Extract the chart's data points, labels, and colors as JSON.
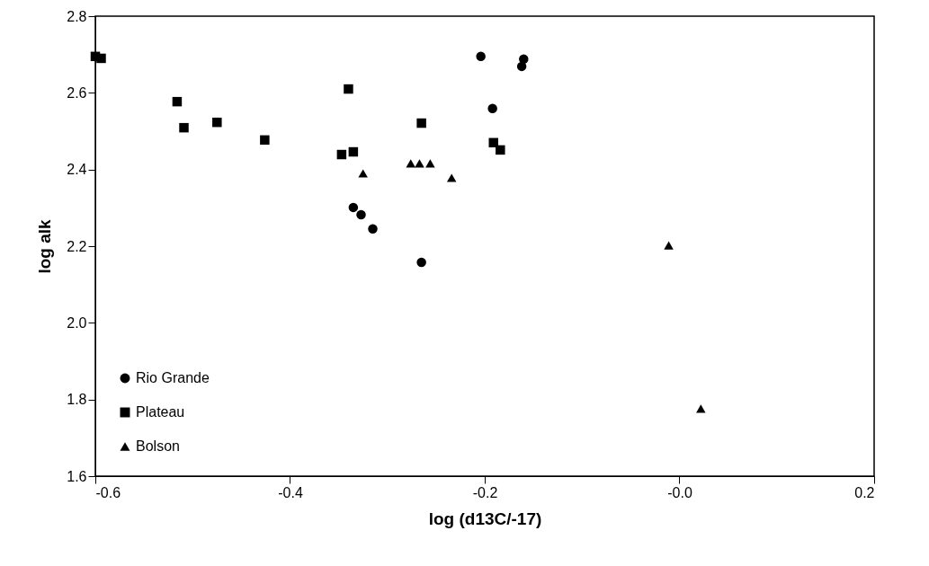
{
  "chart_data": {
    "type": "scatter",
    "xlabel": "log     (d13C/-17)",
    "ylabel": "log alk",
    "xlim": [
      -0.6,
      0.2
    ],
    "ylim": [
      1.6,
      2.8
    ],
    "xticks": [
      -0.6,
      -0.4,
      -0.2,
      {
        "value": 0,
        "label": "-0.0"
      },
      0.2
    ],
    "yticks": [
      1.6,
      1.8,
      {
        "value": 2,
        "label": "2.0"
      },
      2.2,
      2.4,
      2.6,
      2.8
    ],
    "grid": false,
    "legend": "bottom left",
    "series": [
      {
        "name": "Rio Grande",
        "color": "#000000",
        "marker": "circle",
        "x": [
          -0.204,
          -0.16,
          -0.162,
          -0.192,
          -0.335,
          -0.327,
          -0.315,
          -0.265
        ],
        "values": [
          2.695,
          2.688,
          2.669,
          2.559,
          2.301,
          2.282,
          2.245,
          2.158
        ]
      },
      {
        "name": "Plateau",
        "color": "#000000",
        "marker": "square",
        "x": [
          -0.6,
          -0.594,
          -0.516,
          -0.509,
          -0.475,
          -0.426,
          -0.34,
          -0.335,
          -0.347,
          -0.265,
          -0.191,
          -0.184
        ],
        "values": [
          2.695,
          2.69,
          2.577,
          2.509,
          2.523,
          2.477,
          2.61,
          2.446,
          2.439,
          2.521,
          2.47,
          2.451
        ]
      },
      {
        "name": "Bolson",
        "color": "#000000",
        "marker": "triangle",
        "x": [
          -0.325,
          -0.276,
          -0.267,
          -0.256,
          -0.234,
          -0.011,
          0.022
        ],
        "values": [
          2.39,
          2.416,
          2.416,
          2.416,
          2.378,
          2.202,
          1.776
        ]
      }
    ]
  }
}
